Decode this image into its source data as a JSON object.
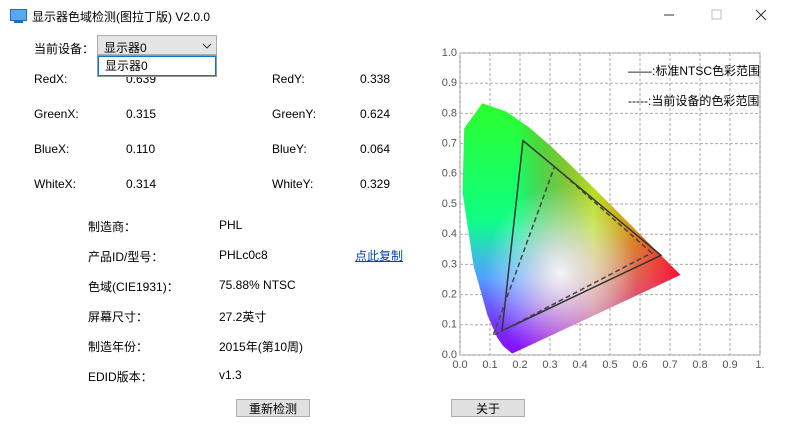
{
  "window": {
    "title": "显示器色域检测(图拉丁版) V2.0.0"
  },
  "device_select": {
    "label": "当前设备：",
    "value": "显示器0",
    "options": [
      "显示器0"
    ]
  },
  "coords": [
    [
      {
        "label": "RedX:",
        "value": "0.639"
      },
      {
        "label": "RedY:",
        "value": "0.338"
      }
    ],
    [
      {
        "label": "GreenX:",
        "value": "0.315"
      },
      {
        "label": "GreenY:",
        "value": "0.624"
      }
    ],
    [
      {
        "label": "BlueX:",
        "value": "0.110"
      },
      {
        "label": "BlueY:",
        "value": "0.064"
      }
    ],
    [
      {
        "label": "WhiteX:",
        "value": "0.314"
      },
      {
        "label": "WhiteY:",
        "value": "0.329"
      }
    ]
  ],
  "info": [
    {
      "label": "制造商：",
      "value": "PHL"
    },
    {
      "label": "产品ID/型号：",
      "value": "PHLc0c8"
    },
    {
      "label": "色域(CIE1931)：",
      "value": "75.88% NTSC"
    },
    {
      "label": "屏幕尺寸：",
      "value": "27.2英寸"
    },
    {
      "label": "制造年份：",
      "value": "2015年(第10周)"
    },
    {
      "label": "EDID版本：",
      "value": "v1.3"
    }
  ],
  "copy_link": "点此复制",
  "buttons": [
    "重新检测",
    "关于"
  ],
  "chart_data": {
    "type": "gamut",
    "xlim": [
      0,
      1
    ],
    "ylim": [
      0,
      1
    ],
    "xticks": [
      {
        "value": 0,
        "label": "0.0"
      },
      0.1,
      0.2,
      0.3,
      0.4,
      0.5,
      0.6,
      0.7,
      0.8,
      0.9,
      {
        "value": 1,
        "label": "1."
      }
    ],
    "yticks": [
      {
        "value": 0,
        "label": "0.0"
      },
      0.1,
      0.2,
      0.3,
      0.4,
      0.5,
      0.6,
      0.7,
      0.8,
      0.9,
      {
        "value": 1,
        "label": "1.0"
      }
    ],
    "grid": true,
    "series": [
      {
        "name": "——:标准NTSC色彩范围",
        "color": "#333333",
        "style": "solid",
        "x": [
          0.67,
          0.21,
          0.14
        ],
        "values": [
          0.33,
          0.71,
          0.08
        ]
      },
      {
        "name": "-----:当前设备的色彩范围",
        "color": "#444444",
        "style": "dashed",
        "x": [
          0.639,
          0.315,
          0.11
        ],
        "values": [
          0.338,
          0.624,
          0.064
        ]
      }
    ]
  }
}
